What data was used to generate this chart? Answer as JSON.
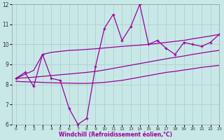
{
  "x_data": [
    0,
    1,
    2,
    3,
    4,
    5,
    6,
    7,
    8,
    9,
    10,
    11,
    12,
    13,
    14,
    15,
    16,
    17,
    18,
    19,
    20,
    21,
    22,
    23
  ],
  "y_main": [
    8.3,
    8.6,
    7.9,
    9.5,
    8.3,
    8.2,
    6.8,
    6.0,
    6.3,
    8.9,
    10.8,
    11.5,
    10.2,
    10.9,
    12.0,
    10.0,
    10.2,
    9.8,
    9.5,
    10.1,
    10.0,
    9.9,
    10.1,
    10.5
  ],
  "y_upper": [
    8.3,
    8.5,
    8.7,
    9.5,
    9.6,
    9.65,
    9.7,
    9.72,
    9.75,
    9.78,
    9.82,
    9.86,
    9.9,
    9.93,
    9.96,
    10.0,
    10.05,
    10.1,
    10.15,
    10.2,
    10.28,
    10.35,
    10.42,
    10.5
  ],
  "y_mid": [
    8.3,
    8.33,
    8.36,
    8.4,
    8.44,
    8.48,
    8.52,
    8.56,
    8.6,
    8.65,
    8.72,
    8.8,
    8.88,
    8.96,
    9.04,
    9.12,
    9.2,
    9.28,
    9.35,
    9.42,
    9.5,
    9.57,
    9.64,
    9.7
  ],
  "y_lower": [
    8.15,
    8.13,
    8.12,
    8.1,
    8.08,
    8.07,
    8.06,
    8.05,
    8.05,
    8.07,
    8.1,
    8.15,
    8.2,
    8.28,
    8.36,
    8.44,
    8.52,
    8.6,
    8.65,
    8.72,
    8.78,
    8.85,
    8.9,
    8.95
  ],
  "line_color": "#990099",
  "bg_color": "#c8e8e8",
  "grid_color": "#b0d0d0",
  "xlabel": "Windchill (Refroidissement éolien,°C)",
  "ylim": [
    6,
    12
  ],
  "xlim": [
    -0.5,
    23
  ],
  "yticks": [
    6,
    7,
    8,
    9,
    10,
    11,
    12
  ],
  "xticks": [
    0,
    1,
    2,
    3,
    4,
    5,
    6,
    7,
    8,
    9,
    10,
    11,
    12,
    13,
    14,
    15,
    16,
    17,
    18,
    19,
    20,
    21,
    22,
    23
  ]
}
